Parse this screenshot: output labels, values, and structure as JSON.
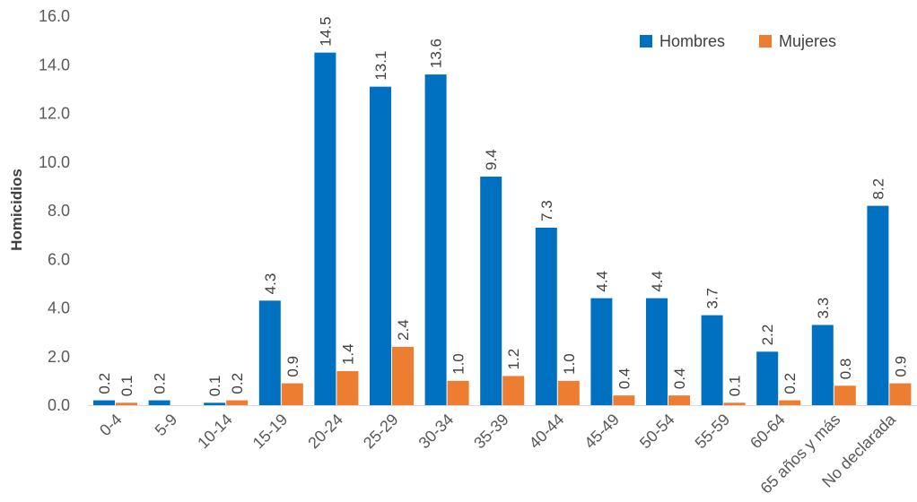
{
  "chart_data": {
    "type": "bar",
    "ylabel": "Homicidios",
    "ylim": [
      0,
      16
    ],
    "yticks": [
      "0.0",
      "2.0",
      "4.0",
      "6.0",
      "8.0",
      "10.0",
      "12.0",
      "14.0",
      "16.0"
    ],
    "categories": [
      "0-4",
      "5-9",
      "10-14",
      "15-19",
      "20-24",
      "25-29",
      "30-34",
      "35-39",
      "40-44",
      "45-49",
      "50-54",
      "55-59",
      "60-64",
      "65 años y más",
      "No declarada"
    ],
    "series": [
      {
        "name": "Hombres",
        "color": "#0070c0",
        "values": [
          0.2,
          0.2,
          0.1,
          4.3,
          14.5,
          13.1,
          13.6,
          9.4,
          7.3,
          4.4,
          4.4,
          3.7,
          2.2,
          3.3,
          8.2
        ],
        "labels": [
          "0.2",
          "0.2",
          "",
          "4.3",
          "14.5",
          "13.1",
          "13.6",
          "9.4",
          "7.3",
          "4.4",
          "4.4",
          "3.7",
          "2.2",
          "3.3",
          "8.2"
        ]
      },
      {
        "name": "Mujeres",
        "color": "#ed7d31",
        "values": [
          0.1,
          0.0,
          0.2,
          0.9,
          1.4,
          2.4,
          1.0,
          1.2,
          1.0,
          0.4,
          0.4,
          0.1,
          0.2,
          0.8,
          0.9
        ],
        "labels": [
          "0.1",
          "",
          "0.2",
          "0.9",
          "1.4",
          "2.4",
          "1.0",
          "1.2",
          "1.0",
          "0.4",
          "0.4",
          "0.1",
          "0.2",
          "0.8",
          "0.9"
        ]
      }
    ],
    "extra_labels": [
      {
        "category": "10-14",
        "text": "0.1"
      }
    ],
    "legend_position": "top-right",
    "grid": false
  }
}
